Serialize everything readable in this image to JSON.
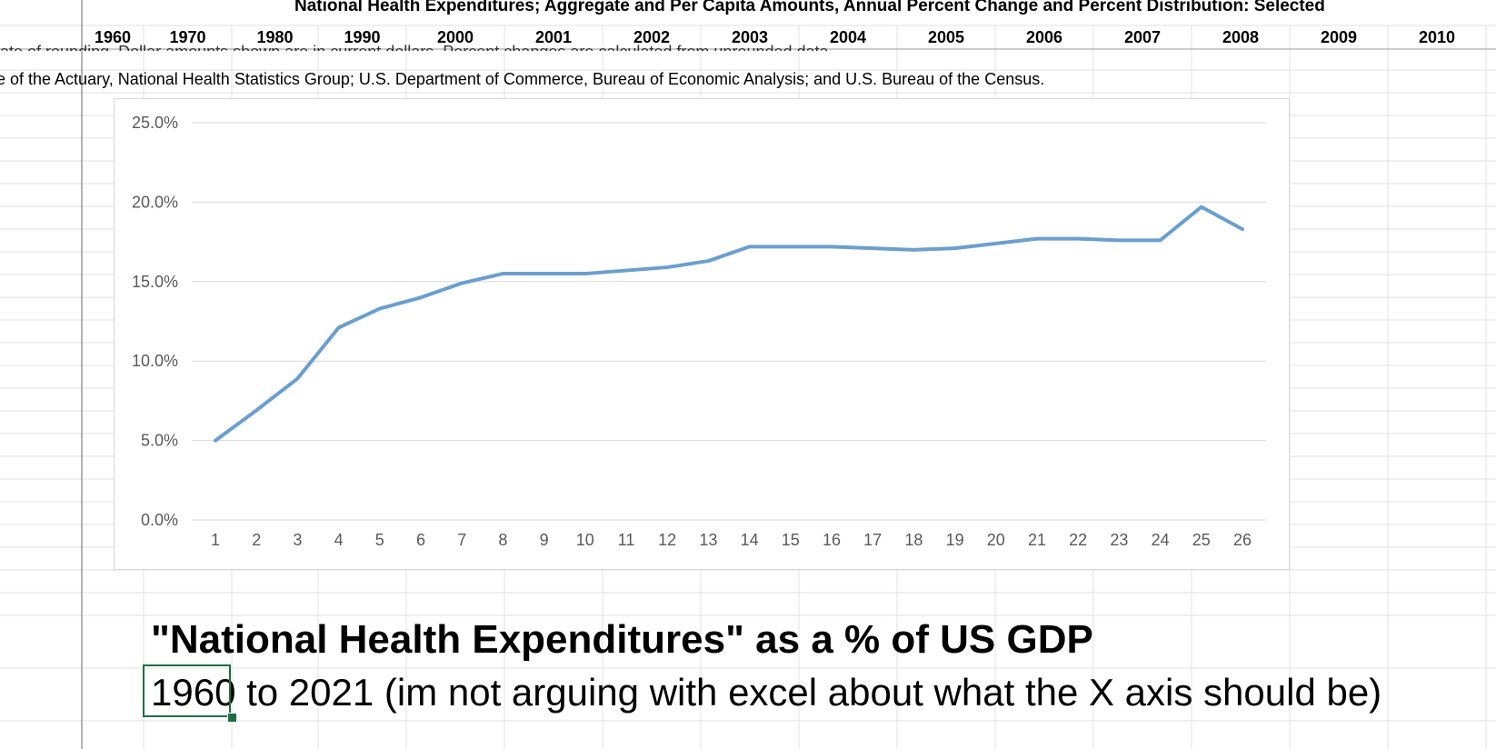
{
  "sheet": {
    "title_text": "National Health Expenditures; Aggregate and Per Capita Amounts, Annual Percent Change and Percent Distribution: Selected",
    "year_headers": [
      "1960",
      "1970",
      "1980",
      "1990",
      "2000",
      "2001",
      "2002",
      "2003",
      "2004",
      "2005",
      "2006",
      "2007",
      "2008",
      "2009",
      "2010"
    ],
    "note_text": "ate of rounding.  Dollar amounts shown are in current dollars.  Percent changes are calculated from unrounded data.",
    "source_text": "e of the Actuary, National Health Statistics Group;  U.S. Department of Commerce, Bureau of Economic Analysis; and U.S. Bureau of the Census.",
    "caption_title": "\"National Health Expenditures\" as a % of US GDP",
    "caption_subtitle": "1960 to 2021 (im not arguing with excel about what the X axis should be)",
    "selected_cell_value": "1960"
  },
  "chart_data": {
    "type": "line",
    "title": "",
    "xlabel": "",
    "ylabel": "",
    "x": [
      1,
      2,
      3,
      4,
      5,
      6,
      7,
      8,
      9,
      10,
      11,
      12,
      13,
      14,
      15,
      16,
      17,
      18,
      19,
      20,
      21,
      22,
      23,
      24,
      25,
      26
    ],
    "series": [
      {
        "values": [
          5.0,
          6.9,
          8.9,
          12.1,
          13.3,
          14.0,
          14.9,
          15.5,
          15.5,
          15.5,
          15.7,
          15.9,
          16.3,
          17.2,
          17.2,
          17.2,
          17.1,
          17.0,
          17.1,
          17.4,
          17.7,
          17.7,
          17.6,
          17.6,
          19.7,
          18.3
        ],
        "color": "#6a9fcf"
      }
    ],
    "ylim": [
      0,
      25
    ],
    "yticks": [
      "0.0%",
      "5.0%",
      "10.0%",
      "15.0%",
      "20.0%",
      "25.0%"
    ],
    "xtick_labels": [
      "1",
      "2",
      "3",
      "4",
      "5",
      "6",
      "7",
      "8",
      "9",
      "10",
      "11",
      "12",
      "13",
      "14",
      "15",
      "16",
      "17",
      "18",
      "19",
      "20",
      "21",
      "22",
      "23",
      "24",
      "25",
      "26"
    ],
    "grid": true,
    "legend": "none"
  }
}
